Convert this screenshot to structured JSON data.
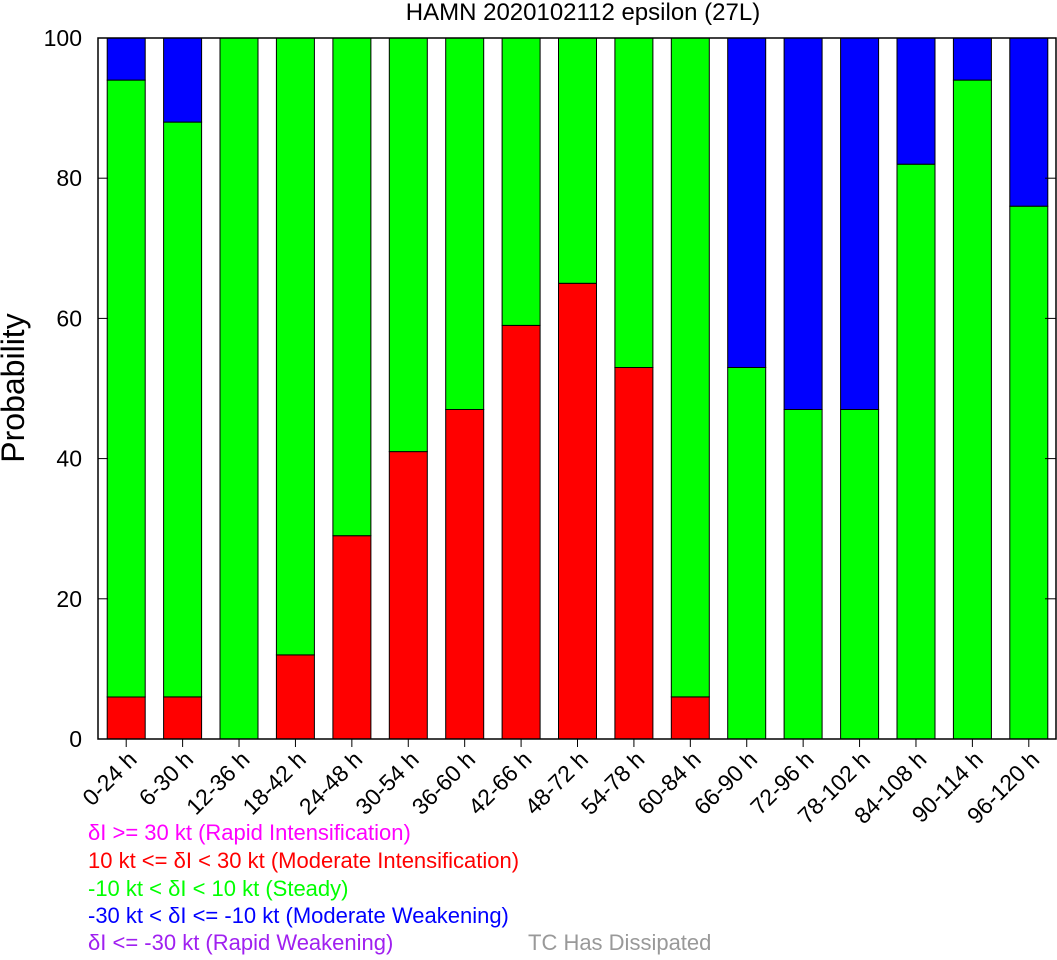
{
  "chart_data": {
    "type": "bar",
    "stacked": true,
    "title": "HAMN 2020102112 epsilon (27L)",
    "xlabel": "",
    "ylabel": "Probability",
    "ylim": [
      0,
      100
    ],
    "yticks": [
      0,
      20,
      40,
      60,
      80,
      100
    ],
    "categories": [
      "0-24 h",
      "6-30 h",
      "12-36 h",
      "18-42 h",
      "24-48 h",
      "30-54 h",
      "36-60 h",
      "42-66 h",
      "48-72 h",
      "54-78 h",
      "60-84 h",
      "66-90 h",
      "72-96 h",
      "78-102 h",
      "84-108 h",
      "90-114 h",
      "96-120 h"
    ],
    "series": [
      {
        "name": "10 kt <= δI < 30 kt (Moderate Intensification)",
        "color": "#ff0000",
        "values": [
          6,
          6,
          0,
          12,
          29,
          41,
          47,
          59,
          65,
          53,
          6,
          0,
          0,
          0,
          0,
          0,
          0
        ]
      },
      {
        "name": "-10 kt < δI < 10 kt (Steady)",
        "color": "#00ff00",
        "values": [
          88,
          82,
          100,
          88,
          71,
          59,
          53,
          41,
          35,
          47,
          94,
          53,
          47,
          47,
          82,
          94,
          76
        ]
      },
      {
        "name": "-30 kt < δI <= -10 kt (Moderate Weakening)",
        "color": "#0000ff",
        "values": [
          6,
          12,
          0,
          0,
          0,
          0,
          0,
          0,
          0,
          0,
          0,
          47,
          53,
          53,
          18,
          6,
          24
        ]
      }
    ],
    "grid": false
  },
  "legend": [
    {
      "text": "δI >= 30 kt (Rapid Intensification)",
      "color": "#ff00ff"
    },
    {
      "text": "10 kt <= δI < 30 kt (Moderate Intensification)",
      "color": "#ff0000"
    },
    {
      "text": "-10 kt < δI < 10 kt (Steady)",
      "color": "#00ff00"
    },
    {
      "text": "-30 kt < δI <= -10 kt (Moderate Weakening)",
      "color": "#0000ff"
    },
    {
      "text": "δI <= -30 kt (Rapid Weakening)",
      "color": "#a020f0"
    }
  ],
  "dissipated_label": {
    "text": "TC Has Dissipated",
    "color": "#999999"
  }
}
